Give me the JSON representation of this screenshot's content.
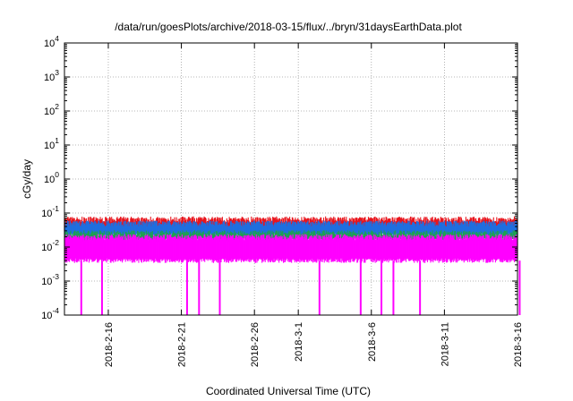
{
  "chart_data": {
    "type": "line",
    "title": "/data/run/goesPlots/archive/2018-03-15/flux/../bryn/31daysEarthData.plot",
    "xlabel": "Coordinated Universal Time (UTC)",
    "ylabel": "cGy/day",
    "y_scale": "log",
    "ylim": [
      0.0001,
      10000
    ],
    "xlim": [
      "2018-02-13",
      "2018-03-16"
    ],
    "grid": true,
    "legend": "none",
    "x_ticks": [
      {
        "date": "2018-02-16",
        "label": "2018-2-16"
      },
      {
        "date": "2018-02-21",
        "label": "2018-2-21"
      },
      {
        "date": "2018-02-26",
        "label": "2018-2-26"
      },
      {
        "date": "2018-03-01",
        "label": "2018-3-1"
      },
      {
        "date": "2018-03-06",
        "label": "2018-3-6"
      },
      {
        "date": "2018-03-11",
        "label": "2018-3-11"
      },
      {
        "date": "2018-03-16",
        "label": "2018-3-16"
      }
    ],
    "y_ticks": [
      {
        "value": 0.0001,
        "base": "10",
        "exp": "-4"
      },
      {
        "value": 0.001,
        "base": "10",
        "exp": "-3"
      },
      {
        "value": 0.01,
        "base": "10",
        "exp": "-2"
      },
      {
        "value": 0.1,
        "base": "10",
        "exp": "-1"
      },
      {
        "value": 1,
        "base": "10",
        "exp": "0"
      },
      {
        "value": 10,
        "base": "10",
        "exp": "1"
      },
      {
        "value": 100,
        "base": "10",
        "exp": "2"
      },
      {
        "value": 1000,
        "base": "10",
        "exp": "3"
      },
      {
        "value": 10000,
        "base": "10",
        "exp": "4"
      }
    ],
    "series": [
      {
        "color": "#e8141c",
        "band_low": 0.035,
        "band_high": 0.065,
        "spike_max": 0.08
      },
      {
        "color": "#1f6fe0",
        "band_low": 0.022,
        "band_high": 0.05,
        "spike_max": 0.06
      },
      {
        "color": "#1fa050",
        "band_low": 0.016,
        "band_high": 0.026
      },
      {
        "color": "#ff00ff",
        "band_low": 0.004,
        "band_high": 0.02,
        "dropouts_to_floor": [
          "2018-02-14",
          "2018-02-15",
          "2018-02-21",
          "2018-02-22",
          "2018-02-23",
          "2018-03-02",
          "2018-03-05",
          "2018-03-06",
          "2018-03-07",
          "2018-03-09",
          "2018-03-16"
        ]
      }
    ]
  }
}
